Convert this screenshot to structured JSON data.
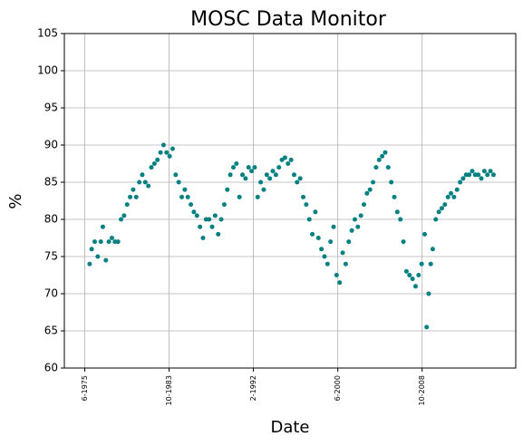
{
  "chart_data": {
    "type": "scatter",
    "title": "MOSC Data Monitor",
    "x_label": "Date",
    "y_label": "%",
    "xlim": [
      1973.4,
      2018.0
    ],
    "xticks": [
      {
        "value": 1975.42,
        "label": "6-1975"
      },
      {
        "value": 1983.75,
        "label": "10-1983"
      },
      {
        "value": 1992.08,
        "label": "2-1992"
      },
      {
        "value": 2000.42,
        "label": "6-2000"
      },
      {
        "value": 2008.75,
        "label": "10-2008"
      }
    ],
    "ylim": [
      60,
      105
    ],
    "yticks": [
      60,
      65,
      70,
      75,
      80,
      85,
      90,
      95,
      100,
      105
    ],
    "grid": true,
    "series": [
      {
        "color": "#008080",
        "x": [
          1975.9,
          1976.1,
          1976.4,
          1976.7,
          1977.0,
          1977.2,
          1977.5,
          1977.8,
          1978.1,
          1978.4,
          1978.7,
          1979.0,
          1979.3,
          1979.6,
          1979.9,
          1980.2,
          1980.5,
          1980.8,
          1981.1,
          1981.4,
          1981.7,
          1982.0,
          1982.3,
          1982.6,
          1982.9,
          1983.2,
          1983.5,
          1983.8,
          1984.1,
          1984.4,
          1984.7,
          1985.0,
          1985.3,
          1985.6,
          1985.9,
          1986.2,
          1986.5,
          1986.8,
          1987.1,
          1987.4,
          1987.7,
          1988.0,
          1988.3,
          1988.6,
          1988.9,
          1989.2,
          1989.5,
          1989.8,
          1990.1,
          1990.4,
          1990.7,
          1991.0,
          1991.3,
          1991.6,
          1991.9,
          1992.2,
          1992.5,
          1992.8,
          1993.1,
          1993.4,
          1993.7,
          1994.0,
          1994.3,
          1994.6,
          1994.9,
          1995.2,
          1995.5,
          1995.8,
          1996.1,
          1996.4,
          1996.7,
          1997.0,
          1997.3,
          1997.6,
          1997.9,
          1998.2,
          1998.5,
          1998.8,
          1999.1,
          1999.4,
          1999.7,
          2000.0,
          2000.3,
          2000.6,
          2000.9,
          2001.2,
          2001.5,
          2001.8,
          2002.1,
          2002.4,
          2002.7,
          2003.0,
          2003.3,
          2003.6,
          2003.9,
          2004.2,
          2004.5,
          2004.8,
          2005.1,
          2005.4,
          2005.7,
          2006.0,
          2006.3,
          2006.6,
          2006.9,
          2007.2,
          2007.5,
          2007.8,
          2008.1,
          2008.4,
          2008.7,
          2009.0,
          2009.2,
          2009.4,
          2009.6,
          2009.8,
          2010.1,
          2010.4,
          2010.7,
          2011.0,
          2011.3,
          2011.6,
          2011.9,
          2012.2,
          2012.5,
          2012.8,
          2013.1,
          2013.4,
          2013.7,
          2014.0,
          2014.3,
          2014.6,
          2014.9,
          2015.2,
          2015.5,
          2015.8
        ],
        "values": [
          74,
          76,
          77,
          75,
          77,
          79,
          74.5,
          77,
          77.5,
          77,
          77,
          80,
          80.5,
          82,
          83,
          84,
          83,
          85,
          86,
          85,
          84.5,
          87,
          87.5,
          88,
          89,
          90,
          89,
          88.5,
          89.5,
          86,
          85,
          83,
          84,
          83,
          82,
          81,
          80.5,
          79,
          77.5,
          80,
          80,
          79,
          80.5,
          78,
          80,
          82,
          84,
          86,
          87,
          87.5,
          83,
          86,
          85.5,
          87,
          86.5,
          87,
          83,
          85,
          84,
          86,
          85.5,
          86.5,
          86,
          87,
          88,
          88.3,
          87.5,
          88,
          86,
          85,
          85.5,
          83,
          82,
          80,
          78,
          81,
          77.5,
          76,
          75,
          74,
          77,
          79,
          72.5,
          71.5,
          75.5,
          74,
          77,
          78.5,
          80,
          79,
          80.5,
          82,
          83.5,
          84,
          85,
          87,
          88,
          88.5,
          89,
          87,
          85,
          83,
          81,
          80,
          77,
          73,
          72.5,
          72,
          71,
          72.5,
          74,
          78,
          65.5,
          70,
          74,
          76,
          80,
          81,
          81.5,
          82,
          83,
          83.5,
          83,
          84,
          85,
          85.5,
          86,
          86,
          86.5,
          86,
          86,
          85.5,
          86.5,
          86,
          86.5,
          86
        ]
      }
    ]
  }
}
